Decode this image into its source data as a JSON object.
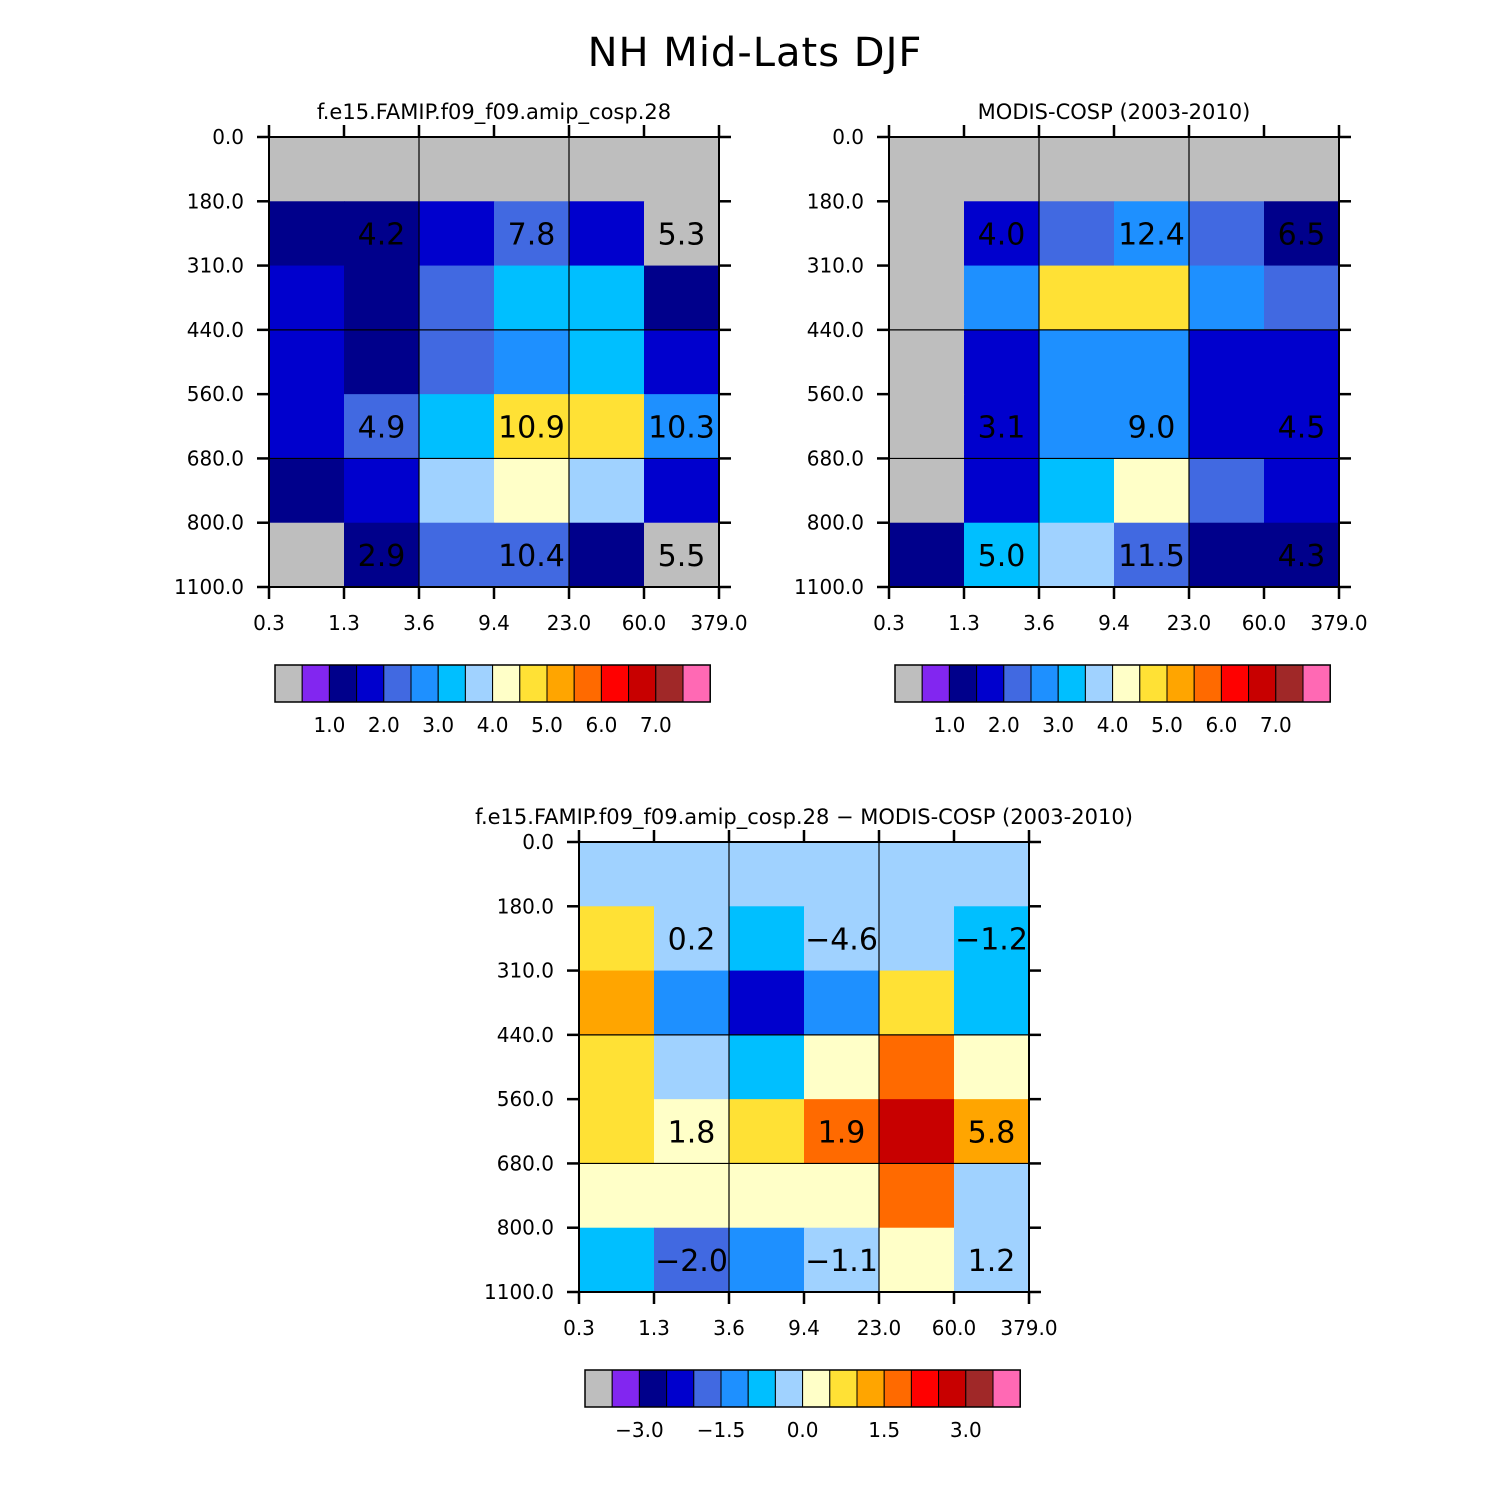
{
  "title": "NH Mid-Lats DJF",
  "colors": {
    "abs_palette": [
      "#bebebe",
      "#8226f0",
      "#00008b",
      "#0000cd",
      "#4169e1",
      "#1e90ff",
      "#00bfff",
      "#a0d2ff",
      "#ffffc8",
      "#ffe135",
      "#ffa500",
      "#ff6a00",
      "#ff0000",
      "#c80000",
      "#a02828",
      "#ff69b4"
    ],
    "diff_palette": [
      "#bebebe",
      "#8226f0",
      "#00008b",
      "#0000cd",
      "#4169e1",
      "#1e90ff",
      "#00bfff",
      "#a0d2ff",
      "#ffffc8",
      "#ffe135",
      "#ffa500",
      "#ff6a00",
      "#ff0000",
      "#c80000",
      "#a02828",
      "#ff69b4"
    ],
    "abs_levels": [
      0.5,
      1.0,
      1.5,
      2.0,
      2.5,
      3.0,
      3.5,
      4.0,
      4.5,
      5.0,
      5.5,
      6.0,
      6.5,
      7.0
    ],
    "diff_levels": [
      -3.5,
      -3.0,
      -2.5,
      -2.0,
      -1.5,
      -1.0,
      -0.5,
      0.0,
      0.5,
      1.0,
      1.5,
      2.0,
      2.5,
      3.0
    ]
  },
  "chart_data": [
    {
      "type": "heatmap",
      "name": "model",
      "title": "f.e15.FAMIP.f09_f09.amip_cosp.28",
      "x_ticks": [
        "0.3",
        "1.3",
        "3.6",
        "9.4",
        "23.0",
        "60.0",
        "379.0"
      ],
      "y_ticks": [
        "0.0",
        "180.0",
        "310.0",
        "440.0",
        "560.0",
        "680.0",
        "800.0",
        "1100.0"
      ],
      "xlabel": "",
      "ylabel": "",
      "cells": [
        [
          0.0,
          0.0,
          0.0,
          0.0,
          0.0,
          0.0
        ],
        [
          1.0,
          1.0,
          1.5,
          2.0,
          1.5,
          0.0
        ],
        [
          1.5,
          1.0,
          2.0,
          3.0,
          3.0,
          1.0
        ],
        [
          1.5,
          1.0,
          2.0,
          2.5,
          3.0,
          1.5
        ],
        [
          1.5,
          2.0,
          3.0,
          4.5,
          4.5,
          2.5
        ],
        [
          1.0,
          1.5,
          3.5,
          4.0,
          3.5,
          1.5
        ],
        [
          0.0,
          1.0,
          2.0,
          2.0,
          1.0,
          0.0
        ]
      ],
      "block_labels": [
        {
          "text": "4.2",
          "row": 1,
          "col": 0.5
        },
        {
          "text": "7.8",
          "row": 1,
          "col": 2.5
        },
        {
          "text": "5.3",
          "row": 1,
          "col": 4.5
        },
        {
          "text": "4.9",
          "row": 4,
          "col": 0.5
        },
        {
          "text": "10.9",
          "row": 4,
          "col": 2.5
        },
        {
          "text": "10.3",
          "row": 4,
          "col": 4.5
        },
        {
          "text": "2.9",
          "row": 6,
          "col": 0.5
        },
        {
          "text": "10.4",
          "row": 6,
          "col": 2.5
        },
        {
          "text": "5.5",
          "row": 6,
          "col": 4.5
        }
      ],
      "colorbar_labels": [
        "1.0",
        "2.0",
        "3.0",
        "4.0",
        "5.0",
        "6.0",
        "7.0"
      ]
    },
    {
      "type": "heatmap",
      "name": "obs",
      "title": "MODIS-COSP (2003-2010)",
      "x_ticks": [
        "0.3",
        "1.3",
        "3.6",
        "9.4",
        "23.0",
        "60.0",
        "379.0"
      ],
      "y_ticks": [
        "0.0",
        "180.0",
        "310.0",
        "440.0",
        "560.0",
        "680.0",
        "800.0",
        "1100.0"
      ],
      "xlabel": "",
      "ylabel": "",
      "cells": [
        [
          0.0,
          0.0,
          0.0,
          0.0,
          0.0,
          0.0
        ],
        [
          0.0,
          1.5,
          2.0,
          2.5,
          2.0,
          1.0
        ],
        [
          0.0,
          2.5,
          4.5,
          4.5,
          2.5,
          2.0
        ],
        [
          0.0,
          1.5,
          2.5,
          2.5,
          1.5,
          1.5
        ],
        [
          0.0,
          1.5,
          2.5,
          2.5,
          1.5,
          1.5
        ],
        [
          0.0,
          1.5,
          3.0,
          4.0,
          2.0,
          1.5
        ],
        [
          1.0,
          3.0,
          3.5,
          2.0,
          1.0,
          1.0
        ]
      ],
      "block_labels": [
        {
          "text": "4.0",
          "row": 1,
          "col": 0.5
        },
        {
          "text": "12.4",
          "row": 1,
          "col": 2.5
        },
        {
          "text": "6.5",
          "row": 1,
          "col": 4.5
        },
        {
          "text": "3.1",
          "row": 4,
          "col": 0.5
        },
        {
          "text": "9.0",
          "row": 4,
          "col": 2.5
        },
        {
          "text": "4.5",
          "row": 4,
          "col": 4.5
        },
        {
          "text": "5.0",
          "row": 6,
          "col": 0.5
        },
        {
          "text": "11.5",
          "row": 6,
          "col": 2.5
        },
        {
          "text": "4.3",
          "row": 6,
          "col": 4.5
        }
      ],
      "colorbar_labels": [
        "1.0",
        "2.0",
        "3.0",
        "4.0",
        "5.0",
        "6.0",
        "7.0"
      ]
    },
    {
      "type": "heatmap",
      "name": "diff",
      "title": "f.e15.FAMIP.f09_f09.amip_cosp.28 − MODIS-COSP (2003-2010)",
      "x_ticks": [
        "0.3",
        "1.3",
        "3.6",
        "9.4",
        "23.0",
        "60.0",
        "379.0"
      ],
      "y_ticks": [
        "0.0",
        "180.0",
        "310.0",
        "440.0",
        "560.0",
        "680.0",
        "800.0",
        "1100.0"
      ],
      "xlabel": "",
      "ylabel": "",
      "cells": [
        [
          -0.3,
          -0.3,
          -0.3,
          -0.3,
          -0.3,
          -0.3
        ],
        [
          0.8,
          -0.3,
          -0.8,
          -0.3,
          -0.3,
          -0.8
        ],
        [
          1.3,
          -1.2,
          -2.2,
          -1.2,
          0.8,
          -0.8
        ],
        [
          0.8,
          -0.3,
          -0.8,
          0.3,
          1.8,
          0.3
        ],
        [
          0.8,
          0.3,
          0.8,
          1.8,
          2.8,
          1.3
        ],
        [
          0.3,
          0.3,
          0.3,
          0.3,
          1.8,
          -0.3
        ],
        [
          -0.8,
          -1.8,
          -1.2,
          -0.3,
          0.3,
          -0.3
        ]
      ],
      "block_labels": [
        {
          "text": "0.2",
          "row": 1,
          "col": 0.5
        },
        {
          "text": "−4.6",
          "row": 1,
          "col": 2.5
        },
        {
          "text": "−1.2",
          "row": 1,
          "col": 4.5
        },
        {
          "text": "1.8",
          "row": 4,
          "col": 0.5
        },
        {
          "text": "1.9",
          "row": 4,
          "col": 2.5
        },
        {
          "text": "5.8",
          "row": 4,
          "col": 4.5
        },
        {
          "text": "−2.0",
          "row": 6,
          "col": 0.5
        },
        {
          "text": "−1.1",
          "row": 6,
          "col": 2.5
        },
        {
          "text": "1.2",
          "row": 6,
          "col": 4.5
        }
      ],
      "colorbar_labels": [
        "−3.0",
        "−1.5",
        "0.0",
        "1.5",
        "3.0"
      ]
    }
  ]
}
